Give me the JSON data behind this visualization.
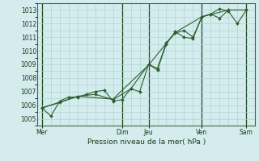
{
  "xlabel": "Pression niveau de la mer( hPa )",
  "ylim": [
    1004.5,
    1013.5
  ],
  "yticks": [
    1005,
    1006,
    1007,
    1008,
    1009,
    1010,
    1011,
    1012,
    1013
  ],
  "background_color": "#d4ecee",
  "grid_color": "#b0d4d4",
  "line_color": "#2d6030",
  "dark_line_color": "#1a4a1a",
  "day_labels": [
    "Mer",
    "Dim",
    "Jeu",
    "Ven",
    "Sam"
  ],
  "day_positions": [
    0,
    9,
    12,
    18,
    23
  ],
  "xlim": [
    -0.5,
    24.0
  ],
  "series1_x": [
    0,
    1,
    2,
    3,
    4,
    5,
    6,
    7,
    8,
    9,
    10,
    11,
    12,
    13,
    14,
    15,
    16,
    17,
    18,
    19,
    20,
    21,
    22,
    23
  ],
  "series1_y": [
    1005.8,
    1005.2,
    1006.3,
    1006.6,
    1006.6,
    1006.8,
    1007.0,
    1007.1,
    1006.3,
    1006.4,
    1007.2,
    1007.0,
    1009.0,
    1008.6,
    1010.5,
    1011.4,
    1011.0,
    1010.9,
    1012.5,
    1012.7,
    1013.1,
    1012.9,
    1012.0,
    1013.0
  ],
  "series2_x": [
    0,
    2,
    4,
    6,
    8,
    10,
    12,
    13,
    14,
    15,
    16,
    17,
    18,
    19,
    20,
    21,
    23
  ],
  "series2_y": [
    1005.8,
    1006.2,
    1006.65,
    1006.8,
    1006.4,
    1007.2,
    1009.0,
    1008.7,
    1010.6,
    1011.3,
    1011.5,
    1011.0,
    1012.5,
    1012.7,
    1012.4,
    1013.0,
    1013.0
  ],
  "series3_x": [
    0,
    4,
    8,
    12,
    15,
    18,
    21,
    23
  ],
  "series3_y": [
    1005.8,
    1006.65,
    1006.45,
    1008.95,
    1011.35,
    1012.5,
    1013.0,
    1013.0
  ]
}
